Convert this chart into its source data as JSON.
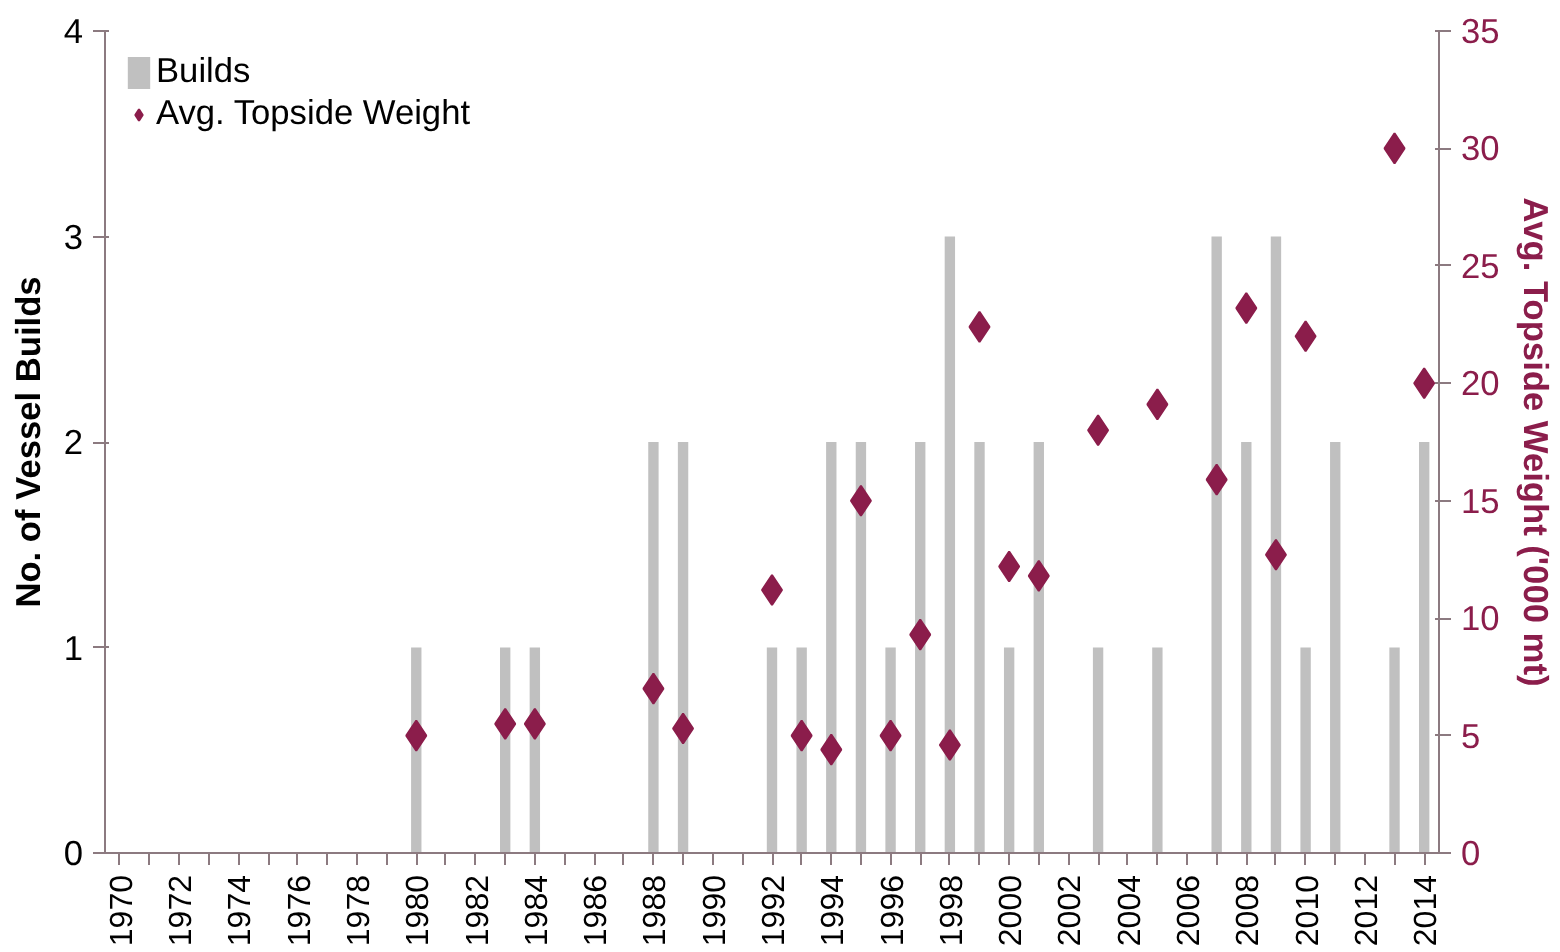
{
  "chart_data": {
    "type": "bar",
    "ylabel": "No. of Vessel Builds",
    "y2label": "Avg. Topside Weight ('000 mt)",
    "categories": [
      "1970",
      null,
      "1972",
      null,
      "1974",
      null,
      "1976",
      null,
      "1978",
      null,
      "1980",
      null,
      "1982",
      null,
      "1984",
      null,
      "1986",
      null,
      "1988",
      null,
      "1990",
      null,
      "1992",
      null,
      "1994",
      null,
      "1996",
      null,
      "1998",
      null,
      "2000",
      null,
      "2002",
      null,
      "2004",
      null,
      "2006",
      null,
      "2008",
      null,
      "2010",
      null,
      "2012",
      null,
      "2014"
    ],
    "series": [
      {
        "name": "Builds",
        "color": "#c0c0c0",
        "values": [
          0,
          0,
          0,
          0,
          0,
          0,
          0,
          0,
          0,
          0,
          1,
          0,
          0,
          1,
          1,
          0,
          0,
          0,
          2,
          2,
          0,
          0,
          1,
          1,
          2,
          2,
          1,
          2,
          3,
          2,
          1,
          2,
          0,
          1,
          0,
          1,
          0,
          3,
          2,
          3,
          1,
          2,
          0,
          1,
          2
        ]
      },
      {
        "name": "Avg. Topside Weight",
        "type": "scatter",
        "axis": "y2",
        "marker": "diamond",
        "color": "#8b1d4b",
        "values": [
          null,
          null,
          null,
          null,
          null,
          null,
          null,
          null,
          null,
          null,
          5.0,
          null,
          null,
          5.5,
          5.5,
          null,
          null,
          null,
          7.0,
          5.3,
          null,
          null,
          11.2,
          5.0,
          4.4,
          15.0,
          5.0,
          9.3,
          4.6,
          22.4,
          12.2,
          11.8,
          null,
          18.0,
          null,
          19.1,
          null,
          15.9,
          23.2,
          12.7,
          22.0,
          null,
          null,
          30.0,
          20.0
        ]
      }
    ],
    "ylim": [
      0,
      4
    ],
    "yticks": [
      0,
      1,
      2,
      3,
      4
    ],
    "y2lim": [
      0,
      35
    ],
    "y2ticks": [
      0,
      5,
      10,
      15,
      20,
      25,
      30,
      35
    ],
    "grid": false,
    "legend": "top left"
  }
}
